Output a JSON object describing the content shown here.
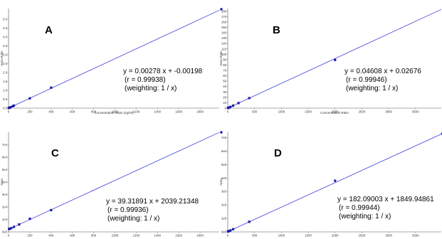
{
  "chart_data": [
    {
      "type": "scatter",
      "panel_label": "A",
      "xlabel": "Concentration Ratio (ng/ml)",
      "ylabel": "Area Ratio",
      "xlim": [
        0,
        1980
      ],
      "ylim": [
        0,
        5.6
      ],
      "x_ticks": [
        0,
        200,
        400,
        600,
        800,
        1000,
        1200,
        1400,
        1600,
        1800
      ],
      "x_tick_labels": [
        "0",
        "200",
        "400",
        "600",
        "800",
        "1000",
        "1200",
        "1400",
        "1600",
        "1800"
      ],
      "y_ticks": [
        0.0,
        0.5,
        1.0,
        1.5,
        2.0,
        2.5,
        3.0,
        3.5,
        4.0,
        4.5,
        5.0
      ],
      "y_tick_labels": [
        "0.0",
        "0.5",
        "1.0",
        "1.5",
        "2.0",
        "2.5",
        "3.0",
        "3.5",
        "4.0",
        "4.5",
        "5.0"
      ],
      "points": [
        {
          "x": 2,
          "y": 0.005
        },
        {
          "x": 5,
          "y": 0.013
        },
        {
          "x": 10,
          "y": 0.027
        },
        {
          "x": 20,
          "y": 0.055
        },
        {
          "x": 40,
          "y": 0.11
        },
        {
          "x": 50,
          "y": 0.14
        },
        {
          "x": 200,
          "y": 0.55
        },
        {
          "x": 400,
          "y": 1.15
        },
        {
          "x": 2000,
          "y": 5.56
        }
      ],
      "fit": {
        "slope": 0.00278,
        "intercept": -0.00198
      },
      "equation": "y = 0.00278 x + -0.00198",
      "r_text": "(r = 0.99938)",
      "weighting": "(weighting: 1 / x)"
    },
    {
      "type": "scatter",
      "panel_label": "B",
      "xlabel": "Concentration Ratio",
      "ylabel": "Area Ratio",
      "xlim": [
        0,
        3980
      ],
      "ylim": [
        0,
        185
      ],
      "x_ticks": [
        0,
        500,
        1000,
        1500,
        2000,
        2500,
        3000,
        3500
      ],
      "x_tick_labels": [
        "0",
        "500",
        "1000",
        "1500",
        "2000",
        "2500",
        "3000",
        "3500"
      ],
      "y_ticks": [
        0,
        10,
        20,
        30,
        40,
        50,
        60,
        70,
        80,
        90,
        100,
        110,
        120,
        130,
        140,
        150,
        160,
        170,
        180
      ],
      "y_tick_labels": [
        "0",
        "10",
        "20",
        "30",
        "40",
        "50",
        "60",
        "70",
        "80",
        "90",
        "100",
        "110",
        "120",
        "130",
        "140",
        "150",
        "160",
        "170",
        "180"
      ],
      "points": [
        {
          "x": 5,
          "y": 0.25
        },
        {
          "x": 10,
          "y": 0.5
        },
        {
          "x": 25,
          "y": 1.2
        },
        {
          "x": 50,
          "y": 2.3
        },
        {
          "x": 100,
          "y": 4.6
        },
        {
          "x": 200,
          "y": 9.4
        },
        {
          "x": 400,
          "y": 18.6
        },
        {
          "x": 2000,
          "y": 89.5
        }
      ],
      "fit": {
        "slope": 0.04608,
        "intercept": 0.02676
      },
      "equation": "y = 0.04608 x + 0.02676",
      "r_text": "(r = 0.99946)",
      "weighting": "(weighting: 1 / x)"
    },
    {
      "type": "scatter",
      "panel_label": "C",
      "xlabel": "",
      "ylabel": "Area",
      "xlim": [
        0,
        1980
      ],
      "ylim": [
        0,
        80000
      ],
      "x_ticks": [
        0,
        200,
        400,
        600,
        800,
        1000,
        1200,
        1400,
        1600,
        1800
      ],
      "x_tick_labels": [
        "0",
        "200",
        "400",
        "600",
        "800",
        "1000",
        "1200",
        "1400",
        "1600",
        "1800"
      ],
      "y_ticks": [
        0,
        10000,
        20000,
        30000,
        40000,
        50000,
        60000,
        70000
      ],
      "y_tick_labels": [
        "0e0",
        "1e4",
        "2e4",
        "3e4",
        "4e4",
        "5e4",
        "6e4",
        "7e4"
      ],
      "points": [
        {
          "x": 5,
          "y": 2300
        },
        {
          "x": 10,
          "y": 2500
        },
        {
          "x": 25,
          "y": 3000
        },
        {
          "x": 50,
          "y": 4000
        },
        {
          "x": 100,
          "y": 6000
        },
        {
          "x": 200,
          "y": 10500
        },
        {
          "x": 400,
          "y": 17500
        },
        {
          "x": 2000,
          "y": 80000
        }
      ],
      "fit": {
        "slope": 39.31891,
        "intercept": 2039.21348
      },
      "equation": "y = 39.31891 x + 2039.21348",
      "r_text": "(r = 0.99936)",
      "weighting": "(weighting: 1 / x)"
    },
    {
      "type": "scatter",
      "panel_label": "D",
      "xlabel": "",
      "ylabel": "Area",
      "xlim": [
        0,
        3980
      ],
      "ylim": [
        0,
        740000
      ],
      "x_ticks": [
        0,
        500,
        1000,
        1500,
        2000,
        2500,
        3000,
        3500
      ],
      "x_tick_labels": [
        "0",
        "500",
        "1000",
        "1500",
        "2000",
        "2500",
        "3000",
        "3500"
      ],
      "y_ticks": [
        0,
        100000,
        200000,
        300000,
        400000,
        500000,
        600000,
        700000
      ],
      "y_tick_labels": [
        "0e0",
        "1e5",
        "2e5",
        "3e5",
        "4e5",
        "5e5",
        "6e5",
        "7e5"
      ],
      "points": [
        {
          "x": 5,
          "y": 2800
        },
        {
          "x": 10,
          "y": 3700
        },
        {
          "x": 25,
          "y": 6400
        },
        {
          "x": 50,
          "y": 11000
        },
        {
          "x": 100,
          "y": 20000
        },
        {
          "x": 400,
          "y": 75000
        },
        {
          "x": 2000,
          "y": 380000
        },
        {
          "x": 4000,
          "y": 730000
        }
      ],
      "fit": {
        "slope": 182.09003,
        "intercept": 1849.94861
      },
      "equation": "y = 182.09003 x + 1849.94861",
      "r_text": "(r = 0.99944)",
      "weighting": "(weighting: 1 / x)"
    }
  ],
  "style": {
    "line_color": "#3b3bd9",
    "point_color": "#1a1aa8",
    "axis_color": "#555555"
  }
}
